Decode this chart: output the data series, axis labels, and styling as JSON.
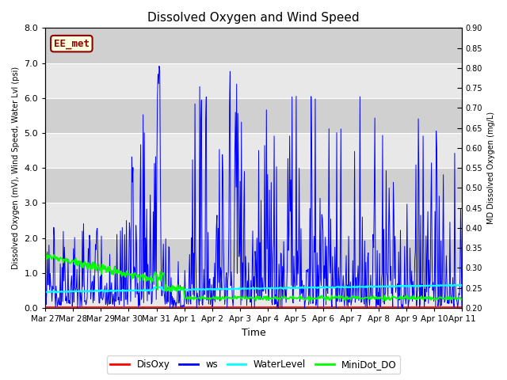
{
  "title": "Dissolved Oxygen and Wind Speed",
  "xlabel": "Time",
  "ylabel_left": "Dissolved Oxygen (mV), Wind Speed, Water Lvl (psi)",
  "ylabel_right": "MD Dissolved Oxygen (mg/L)",
  "ylim_left": [
    0,
    8.0
  ],
  "ylim_right": [
    0.2,
    0.9
  ],
  "yticks_left": [
    0.0,
    1.0,
    2.0,
    3.0,
    4.0,
    5.0,
    6.0,
    7.0,
    8.0
  ],
  "yticks_right": [
    0.2,
    0.25,
    0.3,
    0.35,
    0.4,
    0.45,
    0.5,
    0.55,
    0.6,
    0.65,
    0.7,
    0.75,
    0.8,
    0.85,
    0.9
  ],
  "annotation_text": "EE_met",
  "annotation_color": "#8B0000",
  "annotation_bg": "#FFFFE0",
  "bg_color": "#DCDCDC",
  "band_colors": [
    "#E8E8E8",
    "#D0D0D0"
  ],
  "grid_color": "white",
  "legend_labels": [
    "DisOxy",
    "ws",
    "WaterLevel",
    "MiniDot_DO"
  ],
  "legend_colors": [
    "red",
    "blue",
    "cyan",
    "lime"
  ],
  "x_start_days": 0,
  "x_end_days": 15.0,
  "xtick_positions": [
    0,
    1,
    2,
    3,
    4,
    5,
    6,
    7,
    8,
    9,
    10,
    11,
    12,
    13,
    14,
    15
  ],
  "xtick_labels": [
    "Mar 27",
    "Mar 28",
    "Mar 29",
    "Mar 30",
    "Mar 31",
    "Apr 1",
    "Apr 2",
    "Apr 3",
    "Apr 4",
    "Apr 5",
    "Apr 6",
    "Apr 7",
    "Apr 8",
    "Apr 9",
    "Apr 10",
    "Apr 11"
  ]
}
